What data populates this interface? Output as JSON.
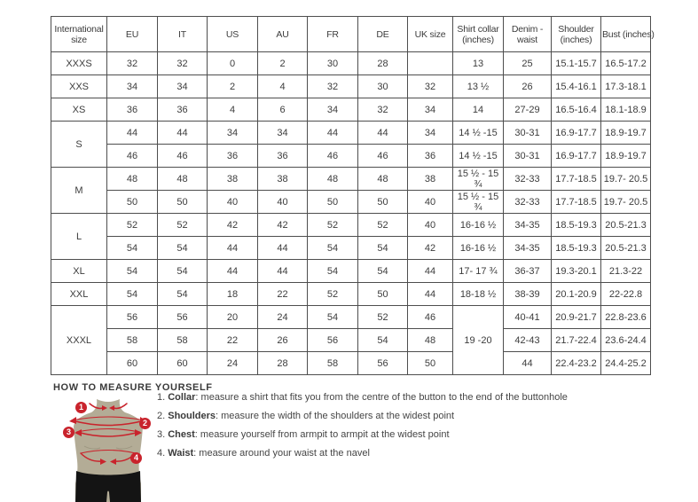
{
  "size_table": {
    "headers": [
      "International size",
      "EU",
      "IT",
      "US",
      "AU",
      "FR",
      "DE",
      "UK size",
      "Shirt collar (inches)",
      "Denim - waist",
      "Shoulder (inches)",
      "Bust (inches)"
    ],
    "rows": [
      {
        "size": "XXXS",
        "size_rowspan": 1,
        "cells": [
          "32",
          "32",
          "0",
          "2",
          "30",
          "28",
          "",
          "13",
          "25",
          "15.1-15.7",
          "16.5-17.2"
        ]
      },
      {
        "size": "XXS",
        "size_rowspan": 1,
        "cells": [
          "34",
          "34",
          "2",
          "4",
          "32",
          "30",
          "32",
          "13 ½",
          "26",
          "15.4-16.1",
          "17.3-18.1"
        ]
      },
      {
        "size": "XS",
        "size_rowspan": 1,
        "cells": [
          "36",
          "36",
          "4",
          "6",
          "34",
          "32",
          "34",
          "14",
          "27-29",
          "16.5-16.4",
          "18.1-18.9"
        ]
      },
      {
        "size": "S",
        "size_rowspan": 2,
        "cells": [
          "44",
          "44",
          "34",
          "34",
          "44",
          "44",
          "34",
          "14 ½ -15",
          "30-31",
          "16.9-17.7",
          "18.9-19.7"
        ]
      },
      {
        "cells": [
          "46",
          "46",
          "36",
          "36",
          "46",
          "46",
          "36",
          "14 ½ -15",
          "30-31",
          "16.9-17.7",
          "18.9-19.7"
        ]
      },
      {
        "size": "M",
        "size_rowspan": 2,
        "cells": [
          "48",
          "48",
          "38",
          "38",
          "48",
          "48",
          "38",
          "15 ½ - 15 ¾",
          "32-33",
          "17.7-18.5",
          "19.7- 20.5"
        ]
      },
      {
        "cells": [
          "50",
          "50",
          "40",
          "40",
          "50",
          "50",
          "40",
          "15 ½ - 15 ¾",
          "32-33",
          "17.7-18.5",
          "19.7- 20.5"
        ]
      },
      {
        "size": "L",
        "size_rowspan": 2,
        "cells": [
          "52",
          "52",
          "42",
          "42",
          "52",
          "52",
          "40",
          "16-16 ½",
          "34-35",
          "18.5-19.3",
          "20.5-21.3"
        ]
      },
      {
        "cells": [
          "54",
          "54",
          "44",
          "44",
          "54",
          "54",
          "42",
          "16-16 ½",
          "34-35",
          "18.5-19.3",
          "20.5-21.3"
        ]
      },
      {
        "size": "XL",
        "size_rowspan": 1,
        "cells": [
          "54",
          "54",
          "44",
          "44",
          "54",
          "54",
          "44",
          "17- 17 ¾",
          "36-37",
          "19.3-20.1",
          "21.3-22"
        ]
      },
      {
        "size": "XXL",
        "size_rowspan": 1,
        "cells": [
          "54",
          "54",
          "18",
          "22",
          "52",
          "50",
          "44",
          "18-18 ½",
          "38-39",
          "20.1-20.9",
          "22-22.8"
        ]
      },
      {
        "size": "XXXL",
        "size_rowspan": 3,
        "cells": [
          "56",
          "56",
          "20",
          "24",
          "54",
          "52",
          "46",
          {
            "text": "19 -20",
            "rowspan": 3
          },
          "40-41",
          "20.9-21.7",
          "22.8-23.6"
        ]
      },
      {
        "cells": [
          "58",
          "58",
          "22",
          "26",
          "56",
          "54",
          "48",
          "42-43",
          "21.7-22.4",
          "23.6-24.4"
        ]
      },
      {
        "cells": [
          "60",
          "60",
          "24",
          "28",
          "58",
          "56",
          "50",
          "44",
          "22.4-23.2",
          "24.4-25.2"
        ]
      }
    ]
  },
  "measure_guide": {
    "heading": "HOW TO MEASURE YOURSELF",
    "markers": [
      "1",
      "2",
      "3",
      "4"
    ],
    "steps": [
      {
        "num": "1.",
        "label": "Collar",
        "text": ": measure a shirt that fits you from the centre of the button to the end of the buttonhole"
      },
      {
        "num": "2.",
        "label": "Shoulders",
        "text": ": measure the width of the shoulders at the widest point"
      },
      {
        "num": "3.",
        "label": "Chest",
        "text": ": measure yourself from armpit to armpit at the widest point"
      },
      {
        "num": "4.",
        "label": "Waist",
        "text": ": measure around your waist at the navel"
      }
    ]
  },
  "colors": {
    "accent_red": "#c9232c",
    "mannequin_body": "#b3ac96",
    "mannequin_shade": "#9d9680",
    "mannequin_shorts": "#141414",
    "table_border": "#4e4e4e",
    "text": "#3c3c3c"
  }
}
